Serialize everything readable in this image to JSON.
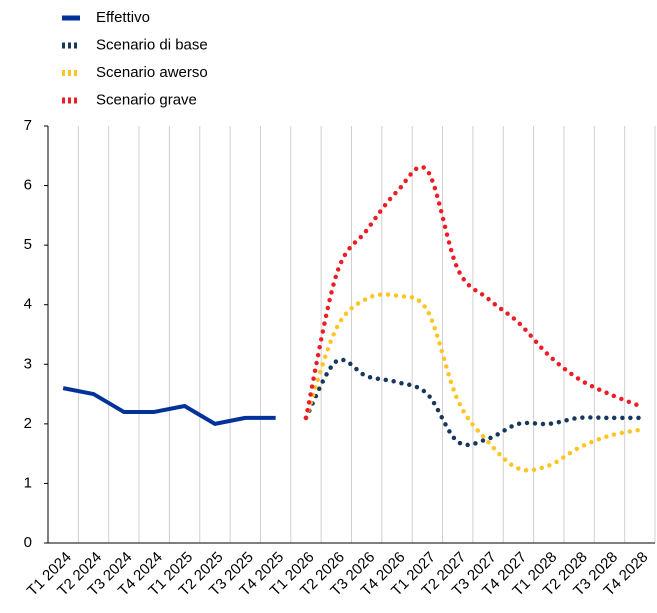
{
  "chart_data": {
    "type": "line",
    "categories": [
      "T1 2024",
      "T2 2024",
      "T3 2024",
      "T4 2024",
      "T1 2025",
      "T2 2025",
      "T3 2025",
      "T4 2025",
      "T1 2026",
      "T2 2026",
      "T3 2026",
      "T4 2026",
      "T1 2027",
      "T2 2027",
      "T3 2027",
      "T4 2027",
      "T1 2028",
      "T2 2028",
      "T3 2028",
      "T4 2028"
    ],
    "series": [
      {
        "name": "Effettivo",
        "color": "#003299",
        "style": "solid",
        "values": [
          2.6,
          2.5,
          2.2,
          2.2,
          2.3,
          2.0,
          2.1,
          2.1,
          null,
          null,
          null,
          null,
          null,
          null,
          null,
          null,
          null,
          null,
          null,
          null
        ]
      },
      {
        "name": "Scenario di base",
        "color": "#17375e",
        "style": "dotted",
        "values": [
          null,
          null,
          null,
          null,
          null,
          null,
          null,
          null,
          2.1,
          3.05,
          2.8,
          2.7,
          2.5,
          1.7,
          1.75,
          2.0,
          2.0,
          2.1,
          2.1,
          2.1
        ]
      },
      {
        "name": "Scenario awerso",
        "color": "#ffc425",
        "style": "dotted",
        "values": [
          null,
          null,
          null,
          null,
          null,
          null,
          null,
          null,
          2.1,
          3.6,
          4.1,
          4.15,
          3.9,
          2.4,
          1.7,
          1.25,
          1.3,
          1.6,
          1.8,
          1.9
        ]
      },
      {
        "name": "Scenario grave",
        "color": "#ee1c25",
        "style": "dotted",
        "values": [
          null,
          null,
          null,
          null,
          null,
          null,
          null,
          null,
          2.1,
          4.5,
          5.25,
          5.9,
          6.25,
          4.6,
          4.1,
          3.7,
          3.15,
          2.75,
          2.5,
          2.3
        ]
      }
    ],
    "ylim": [
      0,
      7
    ],
    "yticks": [
      0,
      1,
      2,
      3,
      4,
      5,
      6,
      7
    ]
  }
}
